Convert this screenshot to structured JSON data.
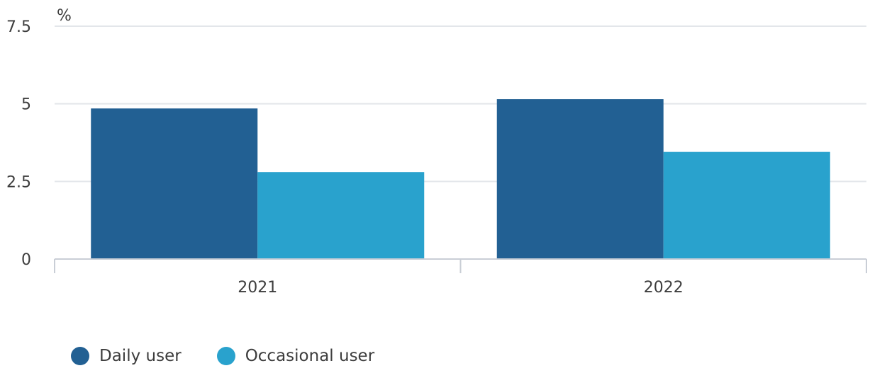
{
  "chart_data": {
    "type": "bar",
    "unit_label": "%",
    "categories": [
      "2021",
      "2022"
    ],
    "series": [
      {
        "name": "Daily user",
        "color": "#226093",
        "values": [
          4.85,
          5.15
        ]
      },
      {
        "name": "Occasional user",
        "color": "#29a2cd",
        "values": [
          2.8,
          3.45
        ]
      }
    ],
    "ylim": [
      0,
      7.5
    ],
    "yticks": [
      {
        "value": 0,
        "label": "0"
      },
      {
        "value": 2.5,
        "label": "2.5"
      },
      {
        "value": 5,
        "label": "5"
      },
      {
        "value": 7.5,
        "label": "7.5"
      }
    ],
    "grid": true,
    "legend_position": "bottom-left"
  }
}
